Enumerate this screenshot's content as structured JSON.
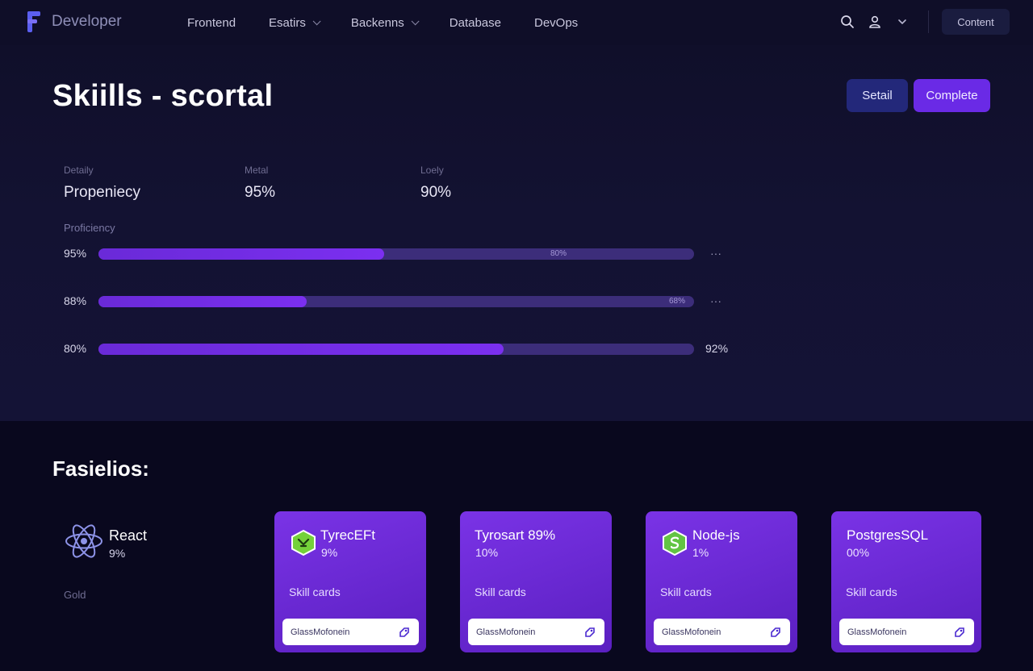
{
  "brand": {
    "name": "Developer",
    "logo_icon": "f-logo-icon"
  },
  "nav": {
    "links": [
      {
        "label": "Frontend",
        "dropdown": false
      },
      {
        "label": "Esatirs",
        "dropdown": true
      },
      {
        "label": "Backenns",
        "dropdown": true
      },
      {
        "label": "Database",
        "dropdown": false
      },
      {
        "label": "DevOps",
        "dropdown": false
      }
    ],
    "icons": [
      "search-icon",
      "user-icon",
      "chevron-down-icon"
    ],
    "cta": "Content"
  },
  "header": {
    "title": "Skiills - scortal",
    "buttons": {
      "secondary": "Setail",
      "primary": "Complete"
    }
  },
  "stats": [
    {
      "label": "Detaily",
      "value": "Propeniecy"
    },
    {
      "label": "Metal",
      "value": "95%"
    },
    {
      "label": "Loely",
      "value": "90%"
    }
  ],
  "proficiency": {
    "label": "Proficiency",
    "bars": [
      {
        "pct_label": "95%",
        "fill": 0.48,
        "inner_label": "80%",
        "end_label": "···"
      },
      {
        "pct_label": "88%",
        "fill": 0.35,
        "inner_label": "68%",
        "end_label": "···"
      },
      {
        "pct_label": "80%",
        "fill": 0.68,
        "inner_label": "",
        "end_label": "92%"
      }
    ]
  },
  "features": {
    "title": "Fasielios:",
    "react": {
      "name": "React",
      "pct": "9%",
      "sub": "Gold",
      "icon": "react-atom-icon"
    },
    "cards": [
      {
        "name": "TyrecEFt",
        "pct": "9%",
        "sub": "Skill cards",
        "input": "GlassMofonein",
        "badge": "hexagon-shield-icon",
        "badge_color": "#74d13a"
      },
      {
        "name": "Tyrosart 89%",
        "pct": "10%",
        "sub": "Skill cards",
        "input": "GlassMofonein",
        "badge": "",
        "badge_color": ""
      },
      {
        "name": "Node-js",
        "pct": "1%",
        "sub": "Skill cards",
        "input": "GlassMofonein",
        "badge": "nodejs-hexagon-icon",
        "badge_color": "#62c443"
      },
      {
        "name": "PostgresSQL",
        "pct": "00%",
        "sub": "Skill cards",
        "input": "GlassMofonein",
        "badge": "",
        "badge_color": ""
      }
    ]
  },
  "colors": {
    "background": "#0c0b22",
    "accent": "#6a2ae6",
    "bar_track": "#3c2d7a",
    "card": "#6a2ae0"
  }
}
